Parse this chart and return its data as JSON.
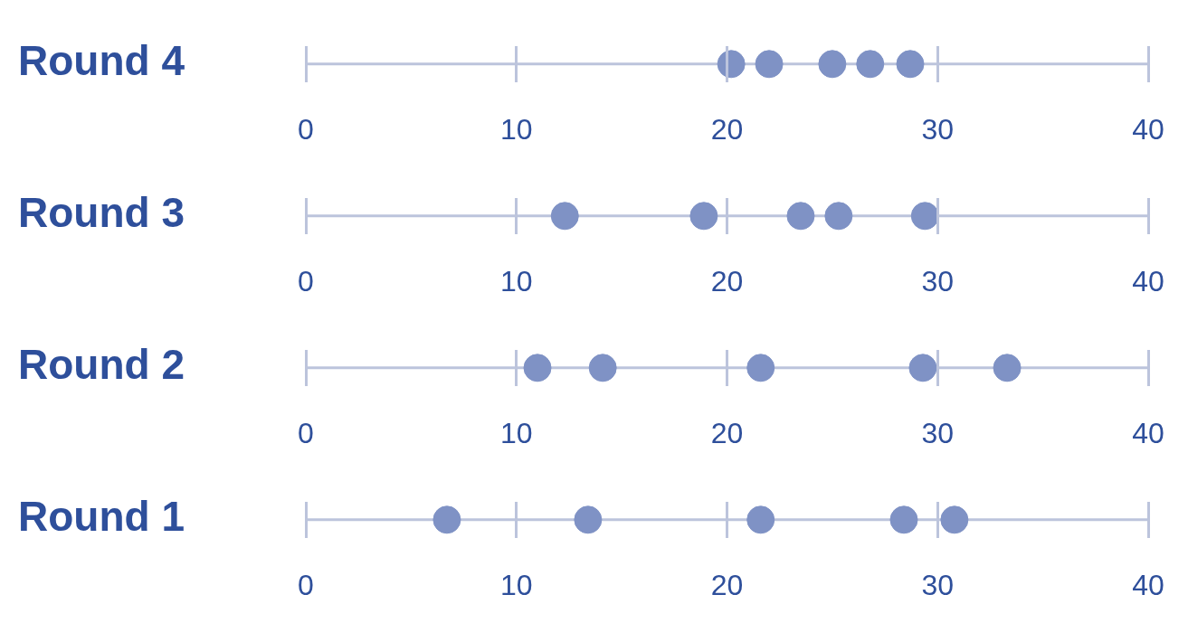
{
  "chart_data": [
    {
      "type": "scatter",
      "orientation": "horizontal",
      "categories": [
        "Round 4"
      ],
      "xlim": [
        0,
        40
      ],
      "xticks": [
        0,
        10,
        20,
        30,
        40
      ],
      "marker": "circle",
      "series": [
        {
          "color": "#7f92c5",
          "values": [
            20.2
          ]
        },
        {
          "color": "#7f92c5",
          "values": [
            22
          ]
        },
        {
          "color": "#7f92c5",
          "values": [
            25
          ]
        },
        {
          "color": "#7f92c5",
          "values": [
            26.8
          ]
        },
        {
          "color": "#7f92c5",
          "values": [
            28.7
          ]
        }
      ]
    },
    {
      "type": "scatter",
      "orientation": "horizontal",
      "categories": [
        "Round 3"
      ],
      "xlim": [
        0,
        40
      ],
      "xticks": [
        0,
        10,
        20,
        30,
        40
      ],
      "marker": "circle",
      "series": [
        {
          "color": "#7f92c5",
          "values": [
            12.3
          ]
        },
        {
          "color": "#7f92c5",
          "values": [
            18.9
          ]
        },
        {
          "color": "#7f92c5",
          "values": [
            23.5
          ]
        },
        {
          "color": "#7f92c5",
          "values": [
            25.3
          ]
        },
        {
          "color": "#7f92c5",
          "values": [
            29.4
          ]
        }
      ]
    },
    {
      "type": "scatter",
      "orientation": "horizontal",
      "categories": [
        "Round 2"
      ],
      "xlim": [
        0,
        40
      ],
      "xticks": [
        0,
        10,
        20,
        30,
        40
      ],
      "marker": "circle",
      "series": [
        {
          "color": "#7f92c5",
          "values": [
            11
          ]
        },
        {
          "color": "#7f92c5",
          "values": [
            14.1
          ]
        },
        {
          "color": "#7f92c5",
          "values": [
            21.6
          ]
        },
        {
          "color": "#7f92c5",
          "values": [
            29.3
          ]
        },
        {
          "color": "#7f92c5",
          "values": [
            33.3
          ]
        }
      ]
    },
    {
      "type": "scatter",
      "orientation": "horizontal",
      "categories": [
        "Round 1"
      ],
      "xlim": [
        0,
        40
      ],
      "xticks": [
        0,
        10,
        20,
        30,
        40
      ],
      "marker": "circle",
      "series": [
        {
          "color": "#7f92c5",
          "values": [
            6.7
          ]
        },
        {
          "color": "#7f92c5",
          "values": [
            13.4
          ]
        },
        {
          "color": "#7f92c5",
          "values": [
            21.6
          ]
        },
        {
          "color": "#7f92c5",
          "values": [
            28.4
          ]
        },
        {
          "color": "#7f92c5",
          "values": [
            30.8
          ]
        }
      ]
    }
  ]
}
